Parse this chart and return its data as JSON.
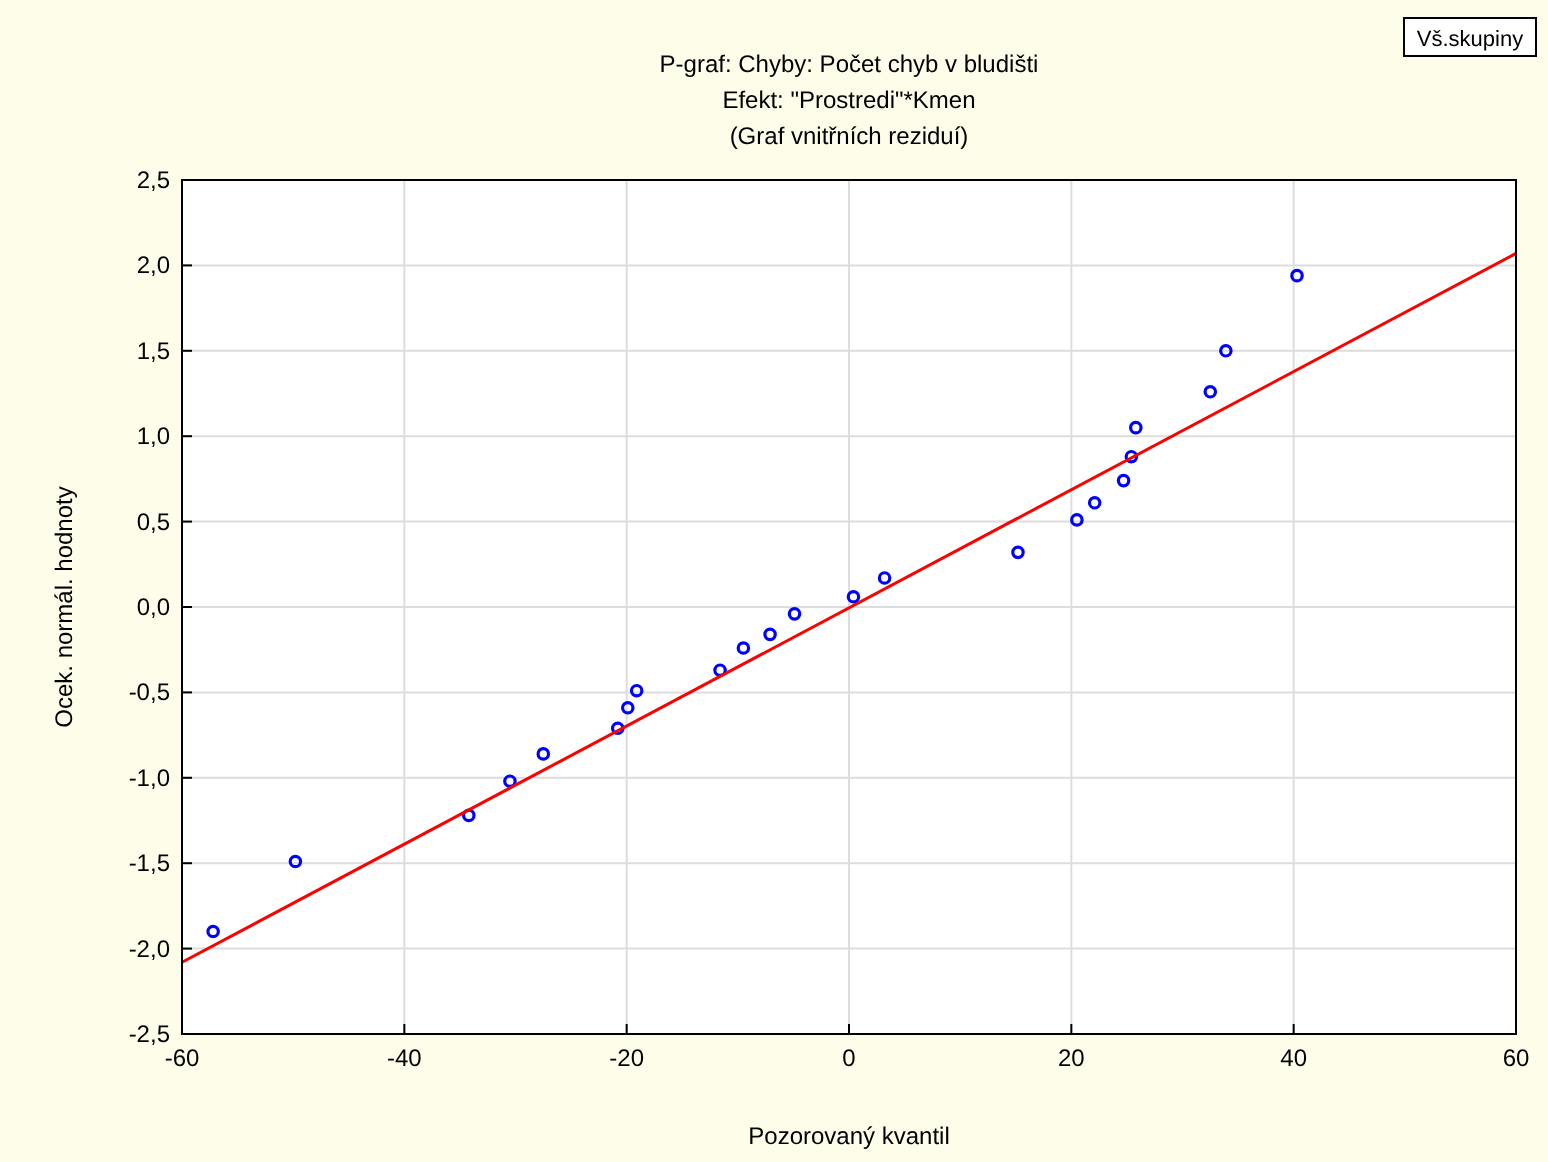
{
  "chart_data": {
    "type": "scatter",
    "title": "P-graf: Chyby: Počet chyb v bludišti",
    "subtitle": "Efekt: \"Prostredi\"*Kmen\n(Graf vnitřních reziduí)",
    "xlabel": "Pozorovaný kvantil",
    "ylabel": "Ocek. normál. hodnoty",
    "annotations": [
      "Vš.skupiny"
    ],
    "xlim": [
      -60,
      60
    ],
    "xticks": [
      -60,
      -40,
      -20,
      0,
      20,
      40,
      60
    ],
    "ylim": [
      -2.5,
      2.5
    ],
    "yticks": [
      {
        "value": -2.5,
        "label": "-2,5"
      },
      {
        "value": -2,
        "label": "-2,0"
      },
      {
        "value": -1.5,
        "label": "-1,5"
      },
      {
        "value": -1,
        "label": "-1,0"
      },
      {
        "value": -0.5,
        "label": "-0,5"
      },
      {
        "value": 0,
        "label": "0,0"
      },
      {
        "value": 0.5,
        "label": "0,5"
      },
      {
        "value": 1,
        "label": "1,0"
      },
      {
        "value": 1.5,
        "label": "1,5"
      },
      {
        "value": 2,
        "label": "2,0"
      },
      {
        "value": 2.5,
        "label": "2,5"
      }
    ],
    "grid": true,
    "marker": "circle",
    "series": [
      {
        "color": "#0000ff",
        "x": [
          -57.2,
          -49.8,
          -34.2,
          -30.5,
          -27.5,
          -20.8,
          -19.9,
          -19.1,
          -11.6,
          -9.5,
          -7.1,
          -4.9,
          0.4,
          3.2,
          15.2,
          20.5,
          22.1,
          24.7,
          25.4,
          25.8,
          32.5,
          33.9,
          40.3
        ],
        "values": [
          -1.9,
          -1.49,
          -1.22,
          -1.02,
          -0.86,
          -0.71,
          -0.59,
          -0.49,
          -0.37,
          -0.24,
          -0.16,
          -0.04,
          0.06,
          0.17,
          0.32,
          0.51,
          0.61,
          0.74,
          0.88,
          1.05,
          1.26,
          1.5,
          1.94
        ]
      },
      {
        "type": "line",
        "marker": "none",
        "color": "#ff0000",
        "x": [
          -60,
          60
        ],
        "values": [
          -2.08,
          2.07
        ]
      }
    ]
  }
}
